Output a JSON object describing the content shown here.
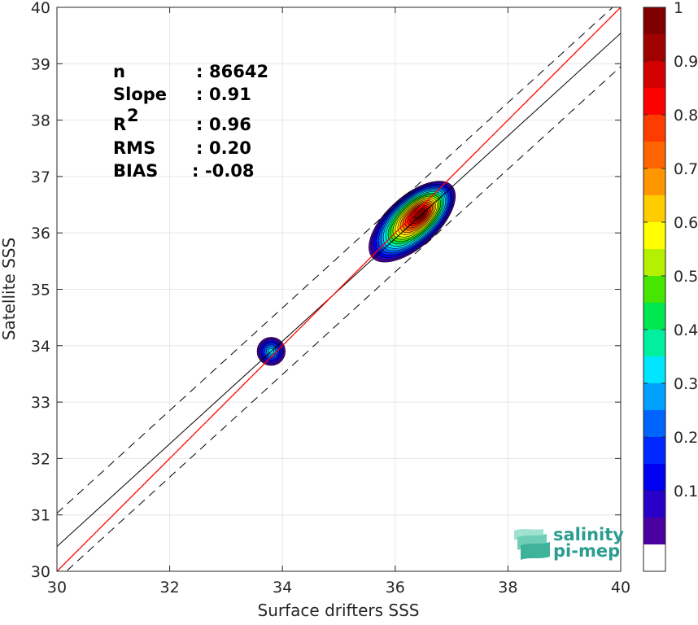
{
  "chart_data": {
    "type": "contour-density-scatter",
    "title": "",
    "xlabel": "Surface drifters SSS",
    "ylabel": "Satellite SSS",
    "xlim": [
      30,
      40
    ],
    "ylim": [
      30,
      40
    ],
    "xticks": [
      "30",
      "32",
      "34",
      "36",
      "38",
      "40"
    ],
    "yticks": [
      "30",
      "31",
      "32",
      "33",
      "34",
      "35",
      "36",
      "37",
      "38",
      "39",
      "40"
    ],
    "grid": true,
    "stats": [
      {
        "name": "n",
        "sep": ":",
        "value": "86642",
        "is_r2": false
      },
      {
        "name": "Slope",
        "sep": ":",
        "value": "0.91",
        "is_r2": false
      },
      {
        "name": "R",
        "sup": "2",
        "sep": ":",
        "value": "0.96",
        "is_r2": true
      },
      {
        "name": "RMS",
        "sep": ":",
        "value": "0.20",
        "is_r2": false
      },
      {
        "name": "BIAS",
        "sep": ":",
        "value": "-0.08",
        "is_r2": false
      }
    ],
    "lines": {
      "identity": {
        "x": [
          30,
          40
        ],
        "y": [
          30,
          40
        ],
        "color": "#ff0000"
      },
      "regression": {
        "slope": 0.91,
        "intercept": 3.14,
        "color": "#000000"
      },
      "bounds": {
        "offset": 0.59,
        "color": "#000000",
        "dash": "10 7"
      }
    },
    "clusters": [
      {
        "cx": 36.4,
        "cy": 36.3,
        "peak": 1.0
      },
      {
        "cx": 33.8,
        "cy": 33.9,
        "peak": 0.3
      }
    ],
    "colorbar": {
      "ticks": [
        "0.1",
        "0.2",
        "0.3",
        "0.4",
        "0.5",
        "0.6",
        "0.7",
        "0.8",
        "0.9",
        "1"
      ],
      "tick_values": [
        0.1,
        0.2,
        0.3,
        0.4,
        0.5,
        0.6,
        0.7,
        0.8,
        0.9,
        1.0
      ],
      "bottom_color": "#ffffff",
      "colors": [
        "#4b00a0",
        "#2800c8",
        "#0000f0",
        "#0028ff",
        "#0064ff",
        "#00a0ff",
        "#00e6ff",
        "#00f0a0",
        "#00e650",
        "#46e600",
        "#b4f000",
        "#ffff00",
        "#ffcc00",
        "#ff9600",
        "#ff6400",
        "#ff3c00",
        "#ff0000",
        "#d20000",
        "#a00000",
        "#800000"
      ]
    },
    "logo": {
      "line1": "salinity",
      "line2": "pi-mep"
    }
  }
}
